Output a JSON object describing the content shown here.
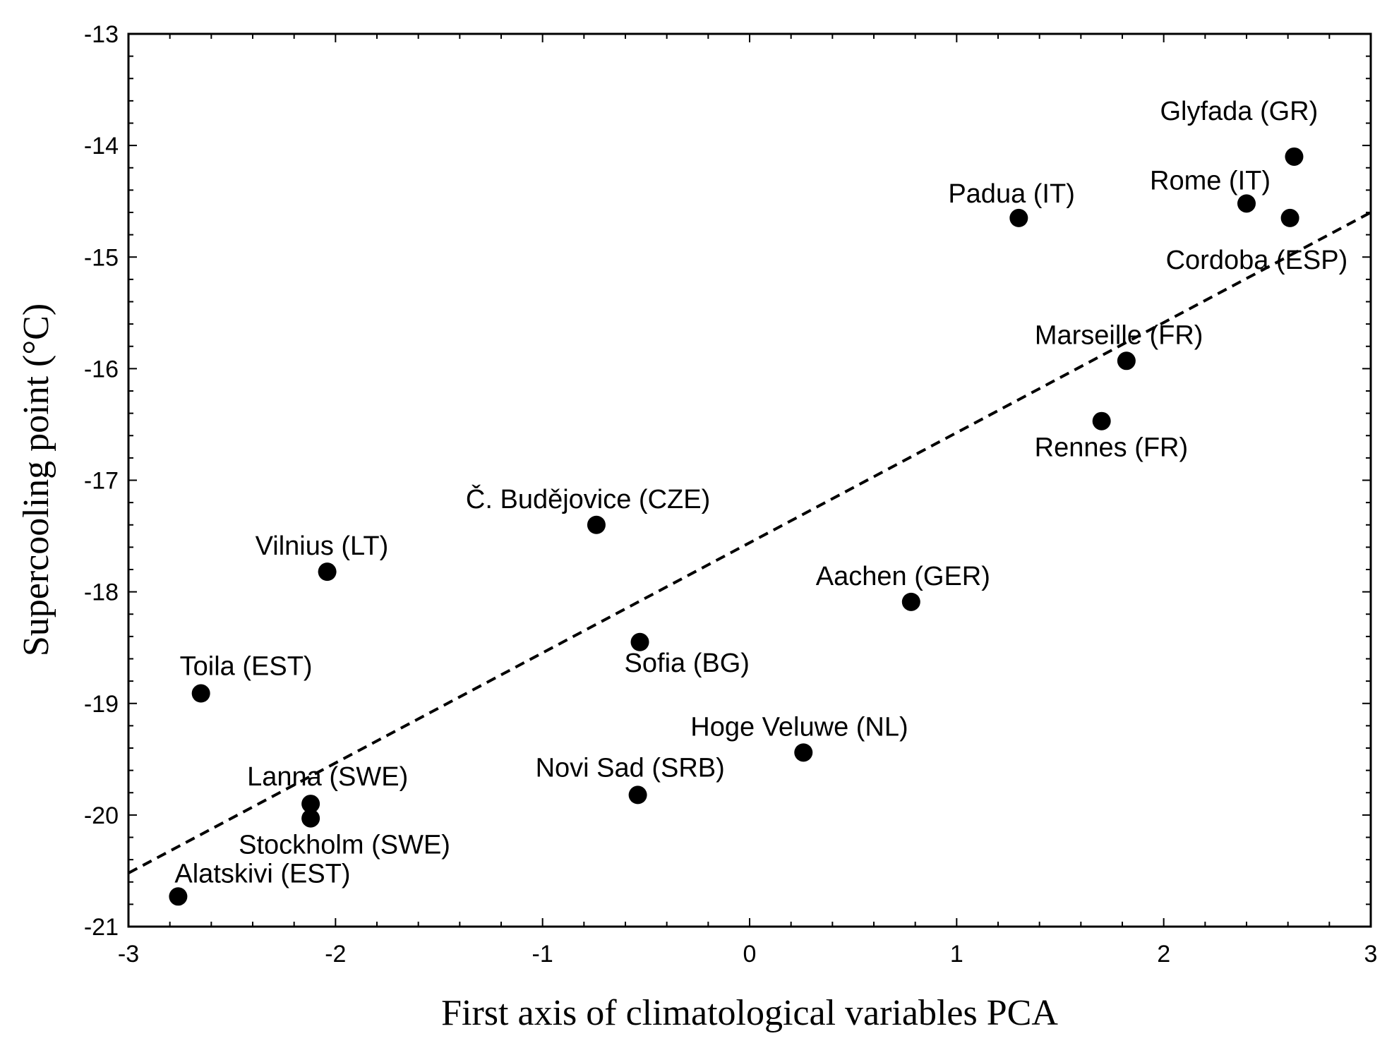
{
  "chart_data": {
    "type": "scatter",
    "title": "",
    "xlabel": "First axis of climatological variables PCA",
    "ylabel": "Supercooling point (°C)",
    "xlim": [
      -3,
      3
    ],
    "ylim": [
      -21,
      -13
    ],
    "xticks": [
      -3,
      -2,
      -1,
      0,
      1,
      2,
      3
    ],
    "yticks": [
      -13,
      -14,
      -15,
      -16,
      -17,
      -18,
      -19,
      -20,
      -21
    ],
    "grid": false,
    "points": [
      {
        "name": "Glyfada (GR)",
        "x": 2.63,
        "y": -14.1
      },
      {
        "name": "Rome (IT)",
        "x": 2.4,
        "y": -14.52
      },
      {
        "name": "Cordoba (ESP)",
        "x": 2.61,
        "y": -14.65
      },
      {
        "name": "Padua (IT)",
        "x": 1.3,
        "y": -14.65
      },
      {
        "name": "Marseille (FR)",
        "x": 1.82,
        "y": -15.93
      },
      {
        "name": "Rennes (FR)",
        "x": 1.7,
        "y": -16.47
      },
      {
        "name": "Č. Budějovice (CZE)",
        "x": -0.74,
        "y": -17.4
      },
      {
        "name": "Vilnius (LT)",
        "x": -2.04,
        "y": -17.82
      },
      {
        "name": "Aachen (GER)",
        "x": 0.78,
        "y": -18.09
      },
      {
        "name": "Sofia (BG)",
        "x": -0.53,
        "y": -18.45
      },
      {
        "name": "Toila (EST)",
        "x": -2.65,
        "y": -18.91
      },
      {
        "name": "Hoge Veluwe (NL)",
        "x": 0.26,
        "y": -19.44
      },
      {
        "name": "Novi Sad (SRB)",
        "x": -0.54,
        "y": -19.82
      },
      {
        "name": "Lanna (SWE)",
        "x": -2.12,
        "y": -19.9
      },
      {
        "name": "Stockholm (SWE)",
        "x": -2.12,
        "y": -20.03
      },
      {
        "name": "Alatskivi (EST)",
        "x": -2.76,
        "y": -20.73
      }
    ],
    "trendline": {
      "style": "dashed",
      "x": [
        -3,
        3
      ],
      "y": [
        -20.52,
        -14.6
      ]
    }
  }
}
